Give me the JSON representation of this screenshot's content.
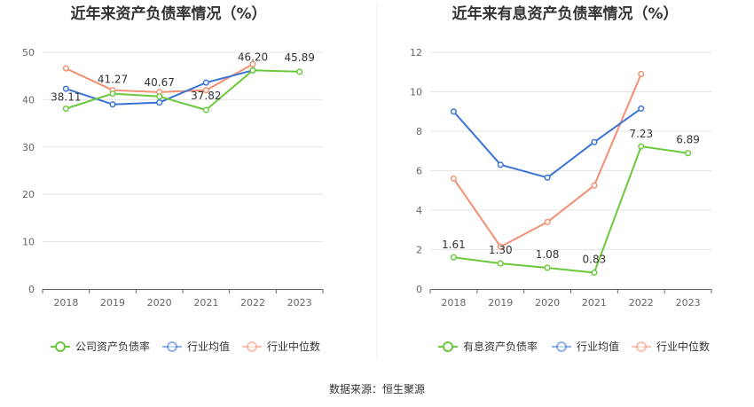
{
  "footer": {
    "source": "数据来源：恒生聚源"
  },
  "colors": {
    "company": "#6ac93b",
    "industry_avg": "#3a73d6",
    "industry_median": "#f39073"
  },
  "chart_data": [
    {
      "type": "line",
      "title": "近年来资产负债率情况（%）",
      "categories": [
        "2018",
        "2019",
        "2020",
        "2021",
        "2022",
        "2023"
      ],
      "ylim": [
        0,
        50
      ],
      "yticks": [
        "0",
        "10",
        "20",
        "30",
        "40",
        "50"
      ],
      "series": [
        {
          "name": "公司资产负债率",
          "values": [
            38.11,
            41.27,
            40.67,
            37.82,
            46.2,
            45.89
          ],
          "labels": [
            "38.11",
            "41.27",
            "40.67",
            "37.82",
            "46.20",
            "45.89"
          ]
        },
        {
          "name": "行业均值",
          "values": [
            42.3,
            39.0,
            39.4,
            43.6,
            46.2,
            null
          ]
        },
        {
          "name": "行业中位数",
          "values": [
            46.6,
            42.0,
            41.6,
            42.0,
            47.5,
            null
          ]
        }
      ]
    },
    {
      "type": "line",
      "title": "近年来有息资产负债率情况（%）",
      "categories": [
        "2018",
        "2019",
        "2020",
        "2021",
        "2022",
        "2023"
      ],
      "ylim": [
        0,
        12
      ],
      "yticks": [
        "0",
        "2",
        "4",
        "6",
        "8",
        "10",
        "12"
      ],
      "series": [
        {
          "name": "有息资产负债率",
          "values": [
            1.61,
            1.3,
            1.08,
            0.83,
            7.23,
            6.89
          ],
          "labels": [
            "1.61",
            "1.30",
            "1.08",
            "0.83",
            "7.23",
            "6.89"
          ]
        },
        {
          "name": "行业均值",
          "values": [
            9.0,
            6.3,
            5.65,
            7.45,
            9.15,
            null
          ]
        },
        {
          "name": "行业中位数",
          "values": [
            5.6,
            2.15,
            3.4,
            5.25,
            10.9,
            null
          ]
        }
      ]
    }
  ]
}
